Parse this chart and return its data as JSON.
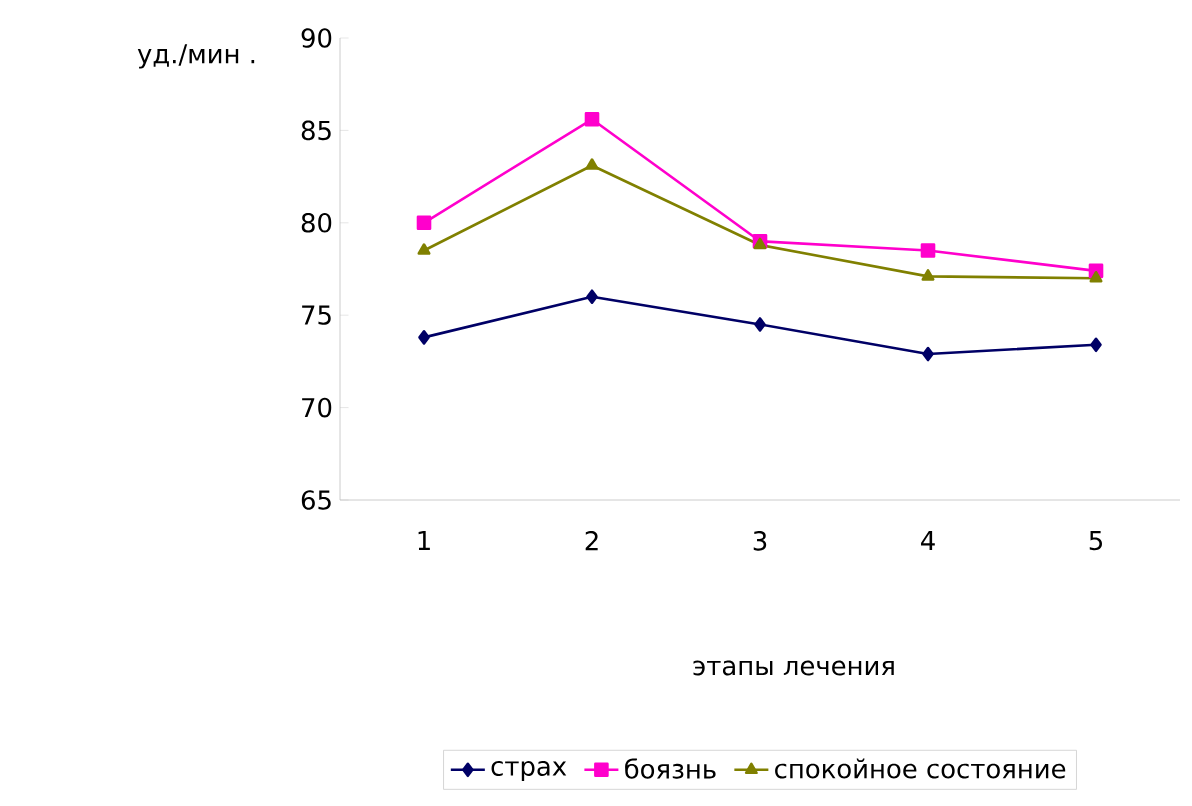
{
  "chart_data": {
    "type": "line",
    "ylabel": "уд./мин .",
    "xlabel": "этапы лечения",
    "categories": [
      "1",
      "2",
      "3",
      "4",
      "5"
    ],
    "series": [
      {
        "name": "страх",
        "color": "#000066",
        "marker": "diamond",
        "values": [
          73.8,
          76.0,
          74.5,
          72.9,
          73.4
        ]
      },
      {
        "name": "боязнь",
        "color": "#ff00cc",
        "marker": "square",
        "values": [
          80.0,
          85.6,
          79.0,
          78.5,
          77.4
        ]
      },
      {
        "name": "спокойное состояние",
        "color": "#808000",
        "marker": "triangle",
        "values": [
          78.5,
          83.1,
          78.8,
          77.1,
          77.0
        ]
      }
    ],
    "ylim": [
      65,
      90
    ],
    "yticks": [
      65,
      70,
      75,
      80,
      85,
      90
    ],
    "grid": false,
    "legend": "bottom"
  }
}
